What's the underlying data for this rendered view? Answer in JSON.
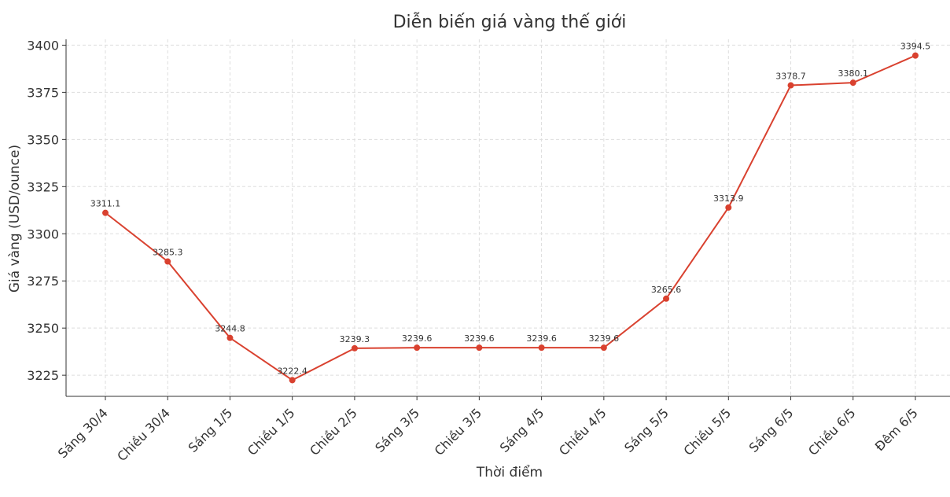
{
  "chart_data": {
    "type": "line",
    "title": "Diễn biến giá vàng thế giới",
    "x_label": "Thời điểm",
    "y_label": "Giá vàng (USD/ounce)",
    "categories": [
      "Sáng 30/4",
      "Chiều 30/4",
      "Sáng 1/5",
      "Chiều 1/5",
      "Chiều 2/5",
      "Sáng 3/5",
      "Chiều 3/5",
      "Sáng 4/5",
      "Chiều 4/5",
      "Sáng 5/5",
      "Chiều 5/5",
      "Sáng 6/5",
      "Chiều 6/5",
      "Đêm 6/5"
    ],
    "series": [
      {
        "name": "Giá vàng",
        "color": "#d9412f",
        "values": [
          3311.1,
          3285.3,
          3244.8,
          3222.4,
          3239.3,
          3239.6,
          3239.6,
          3239.6,
          3239.6,
          3265.6,
          3313.9,
          3378.7,
          3380.1,
          3394.5
        ]
      }
    ],
    "ylim": [
      3213.8,
      3403.1
    ],
    "yticks": [
      3225,
      3250,
      3275,
      3300,
      3325,
      3350,
      3375,
      3400
    ],
    "grid": true
  }
}
